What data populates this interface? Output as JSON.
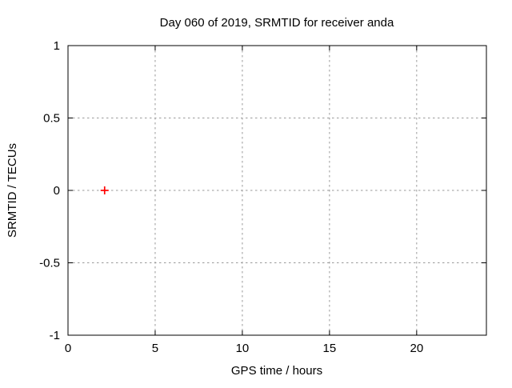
{
  "chart_data": {
    "type": "scatter",
    "title": "Day 060 of 2019, SRMTID for receiver anda",
    "xlabel": "GPS time / hours",
    "ylabel": "SRMTID / TECUs",
    "xlim": [
      0,
      24
    ],
    "ylim": [
      -1,
      1
    ],
    "xticks": [
      0,
      5,
      10,
      15,
      20
    ],
    "yticks": [
      1,
      0.5,
      0,
      -0.5,
      -1
    ],
    "grid": true,
    "legend": false,
    "series": [
      {
        "name": "SRMTID",
        "marker": "plus",
        "color": "#ff0000",
        "points": [
          {
            "x": 2.1,
            "y": 0
          }
        ]
      }
    ]
  },
  "style": {
    "background": "#ffffff",
    "border_color": "#000000",
    "grid_color": "#9a9a9a",
    "text_color": "#000000"
  }
}
